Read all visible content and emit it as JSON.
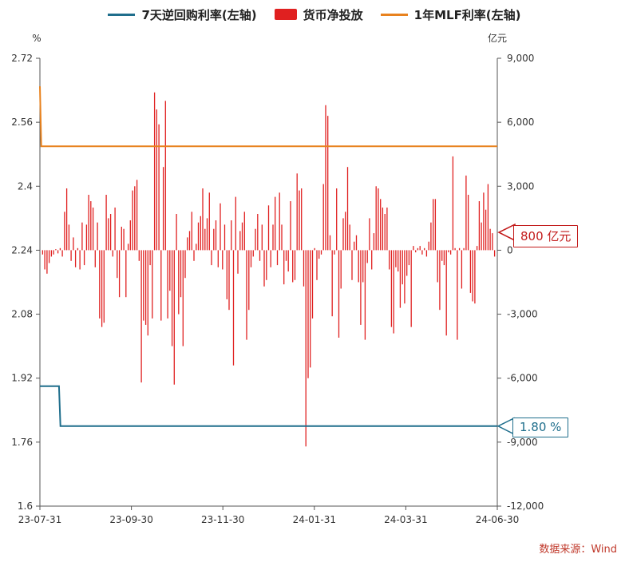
{
  "source": "数据来源：Wind",
  "watermark": "Wind",
  "callouts": {
    "net_value": "800 亿元",
    "repo_rate": "1.80 %"
  },
  "chart_data": {
    "type": "bar",
    "title": "",
    "left_axis_unit": "%",
    "right_axis_unit": "亿元",
    "left_ylim": [
      1.6,
      2.72
    ],
    "left_ticks": [
      "2.72",
      "2.56",
      "2.4",
      "2.24",
      "2.08",
      "1.92",
      "1.76",
      "1.6"
    ],
    "right_ylim": [
      -12000,
      9000
    ],
    "right_ticks": [
      "9,000",
      "6,000",
      "3,000",
      "0",
      "-3,000",
      "-6,000",
      "-9,000",
      "-12,000"
    ],
    "x_range": [
      "2023-07-31",
      "2024-06-30"
    ],
    "x_ticks": [
      "23-07-31",
      "23-09-30",
      "23-11-30",
      "24-01-31",
      "24-03-31",
      "24-06-30"
    ],
    "legend_position": "top",
    "colors": {
      "repo": "#1f6e8c",
      "net": "#e02020",
      "mlf": "#e8821e",
      "axis": "#555555"
    },
    "series": [
      {
        "name": "7天逆回购利率(左轴)",
        "type": "line",
        "axis": "left",
        "points": [
          [
            "2023-07-31",
            1.9
          ],
          [
            "2023-08-14",
            1.9
          ],
          [
            "2023-08-15",
            1.8
          ],
          [
            "2024-06-30",
            1.8
          ]
        ]
      },
      {
        "name": "货币净投放",
        "type": "bar",
        "axis": "right",
        "values": [
          -200,
          -900,
          -1100,
          -600,
          -300,
          -200,
          50,
          -150,
          100,
          -300,
          1800,
          2900,
          1200,
          -500,
          600,
          -800,
          100,
          -900,
          1300,
          -700,
          1200,
          2600,
          2300,
          2000,
          -800,
          1300,
          -3200,
          -3600,
          -3400,
          2600,
          1500,
          1700,
          -300,
          2000,
          -1300,
          -2200,
          1100,
          1000,
          -2200,
          300,
          1400,
          2800,
          3000,
          3300,
          -500,
          -6200,
          -3300,
          -3500,
          -4000,
          -700,
          -3200,
          7400,
          6600,
          5900,
          -3300,
          3900,
          7000,
          -3200,
          -1900,
          -4500,
          -6300,
          1700,
          -3000,
          -2200,
          -4500,
          -1300,
          600,
          900,
          1800,
          -500,
          300,
          1300,
          1600,
          2900,
          1000,
          1500,
          2700,
          -700,
          1000,
          1400,
          -800,
          2200,
          -900,
          1200,
          -2300,
          -2800,
          1400,
          -5400,
          2500,
          -1100,
          900,
          1300,
          1800,
          -4200,
          -2800,
          -800,
          -300,
          1000,
          1700,
          -500,
          1200,
          -1700,
          -1400,
          2100,
          -800,
          1200,
          2500,
          -700,
          2700,
          1200,
          -1600,
          -500,
          -1000,
          2300,
          -1500,
          -1400,
          3600,
          2800,
          2900,
          -1700,
          -9200,
          -6000,
          -5500,
          -3200,
          100,
          -1400,
          -400,
          -200,
          3100,
          6800,
          6300,
          700,
          -3100,
          -200,
          2900,
          -4100,
          -1800,
          1500,
          1800,
          3900,
          1200,
          -1400,
          400,
          700,
          -1500,
          -3500,
          -1500,
          -4200,
          -600,
          1500,
          -900,
          800,
          3000,
          2900,
          2400,
          2000,
          1700,
          2000,
          -900,
          -3600,
          -3900,
          -800,
          -1000,
          -2700,
          -1600,
          -2500,
          -1200,
          -700,
          -3600,
          200,
          -100,
          100,
          200,
          -200,
          100,
          -300,
          400,
          1300,
          2400,
          2400,
          -1500,
          -2800,
          -500,
          -700,
          -4000,
          -100,
          -200,
          4400,
          100,
          -4200,
          100,
          -1800,
          100,
          3500,
          2600,
          -2000,
          -2400,
          -2500,
          200,
          2300,
          1300,
          2700,
          1900,
          3100,
          1000,
          800,
          -300
        ]
      },
      {
        "name": "1年MLF利率(左轴)",
        "type": "line",
        "axis": "left",
        "points": [
          [
            "2023-07-31",
            2.65
          ],
          [
            "2023-08-01",
            2.5
          ],
          [
            "2024-06-30",
            2.5
          ]
        ]
      }
    ]
  }
}
